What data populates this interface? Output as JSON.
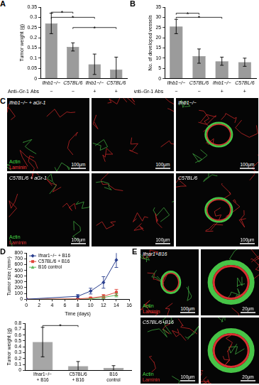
{
  "panel_labels": [
    "A",
    "B",
    "C",
    "D",
    "E"
  ],
  "chart_data": [
    {
      "type": "bar",
      "y_label": "Tumor weight (g)",
      "categories": [
        "Ifnb1−/−",
        "C57BL/6",
        "Ifnb1−/−",
        "C57BL/6"
      ],
      "values": [
        0.27,
        0.155,
        0.07,
        0.045
      ],
      "errors": [
        0.05,
        0.02,
        0.05,
        0.06
      ],
      "color": "#9b9b9b",
      "ylim": [
        0,
        0.35
      ],
      "yticks": [
        0,
        0.05,
        0.1,
        0.15,
        0.2,
        0.25,
        0.3,
        0.35
      ],
      "grid": false,
      "treatment": {
        "label": "Anti–Gr-1 Abs",
        "values": [
          "−",
          "−",
          "+",
          "+"
        ]
      },
      "significance": [
        {
          "from": 0,
          "to": 1,
          "y": 0.325,
          "label": "*"
        },
        {
          "from": 0,
          "to": 2,
          "y": 0.3,
          "label": "*"
        },
        {
          "from": 1,
          "to": 3,
          "y": 0.25,
          "label": "*"
        }
      ]
    },
    {
      "type": "bar",
      "y_label": "No. of developed vessels",
      "categories": [
        "Ifnb1−/−",
        "C57BL/6",
        "Ifnb1−/−",
        "C57BL/6"
      ],
      "values": [
        25.5,
        11,
        8.5,
        8
      ],
      "errors": [
        3.5,
        3.5,
        2,
        2
      ],
      "color": "#9b9b9b",
      "ylim": [
        0,
        35
      ],
      "yticks": [
        0,
        5,
        10,
        15,
        20,
        25,
        30,
        35
      ],
      "grid": false,
      "treatment": {
        "label": "Anti–Gr-1 Abs",
        "values": [
          "−",
          "−",
          "+",
          "+"
        ]
      },
      "significance": [
        {
          "from": 0,
          "to": 1,
          "y": 32,
          "label": "*"
        },
        {
          "from": 0,
          "to": 2,
          "y": 30,
          "label": "*"
        }
      ]
    },
    {
      "type": "line",
      "x_label": "Time (days)",
      "y_label": "Tumor size (mm³)",
      "x": [
        0,
        8,
        10,
        12,
        14
      ],
      "xlim": [
        0,
        16
      ],
      "xticks": [
        0,
        2,
        4,
        6,
        8,
        10,
        12,
        14,
        16
      ],
      "ylim": [
        0,
        800
      ],
      "yticks": [
        0,
        100,
        200,
        300,
        400,
        500,
        600,
        700,
        800
      ],
      "grid": false,
      "legend": "upper left",
      "series": [
        {
          "name": "Ifnar1−/− + B16",
          "color": "#2a3f8f",
          "marker": "diamond",
          "values": [
            0,
            50,
            140,
            290,
            680
          ],
          "errors": [
            0,
            30,
            50,
            100,
            130
          ]
        },
        {
          "name": "C57BL/6 + B16",
          "color": "#e0453a",
          "marker": "square",
          "values": [
            0,
            5,
            20,
            50,
            120
          ],
          "errors": [
            0,
            5,
            15,
            30,
            50
          ]
        },
        {
          "name": "B16 control",
          "color": "#5cb85c",
          "marker": "triangle",
          "values": [
            0,
            0,
            5,
            30,
            70
          ],
          "errors": [
            0,
            0,
            5,
            20,
            30
          ]
        }
      ]
    },
    {
      "type": "bar",
      "y_label": "Tumor weight (g)",
      "categories": [
        "Ifnar1−/− + B16",
        "C57BL/6 + B16",
        "B16 control"
      ],
      "values": [
        0.48,
        0.07,
        0.04
      ],
      "errors": [
        0.25,
        0.08,
        0.04
      ],
      "color": "#a6a6a6",
      "ylim": [
        0,
        0.8
      ],
      "yticks": [
        0,
        0.1,
        0.2,
        0.3,
        0.4,
        0.5,
        0.6,
        0.7,
        0.8
      ],
      "grid": false,
      "significance": [
        {
          "from": 0,
          "to": 1,
          "y": 0.76,
          "label": "*"
        }
      ]
    }
  ],
  "micrographs": {
    "C": [
      {
        "label": "Ifnb1−/− + aGr-1",
        "channels": [
          {
            "name": "Actin",
            "color": "#44dd44"
          },
          {
            "name": "Laminin",
            "color": "#ee3333"
          }
        ],
        "scale_bar": "100μm"
      },
      {
        "scale_bar": "100μm"
      },
      {
        "label": "Ifnb1−/−",
        "scale_bar": "100μm"
      },
      {
        "label": "C57BL/6 + aGr-1",
        "channels": [
          {
            "name": "Actin",
            "color": "#44dd44"
          },
          {
            "name": "Laminin",
            "color": "#ee3333"
          }
        ],
        "scale_bar": "100μm"
      },
      {
        "scale_bar": "100μm"
      },
      {
        "label": "C57BL/6",
        "scale_bar": "100μm"
      }
    ],
    "E": [
      {
        "label": "Ifnar1+B16",
        "channels": [
          {
            "name": "Actin",
            "color": "#44dd44"
          },
          {
            "name": "Laminin",
            "color": "#ee3333"
          }
        ],
        "scale_bar": "100μm"
      },
      {
        "scale_bar": "20μm"
      },
      {
        "label": "C57BL/6+B16",
        "channels": [
          {
            "name": "Actin",
            "color": "#44dd44"
          },
          {
            "name": "Laminin",
            "color": "#ee3333"
          }
        ],
        "scale_bar": "100μm"
      },
      {
        "scale_bar": "20μm"
      }
    ]
  }
}
